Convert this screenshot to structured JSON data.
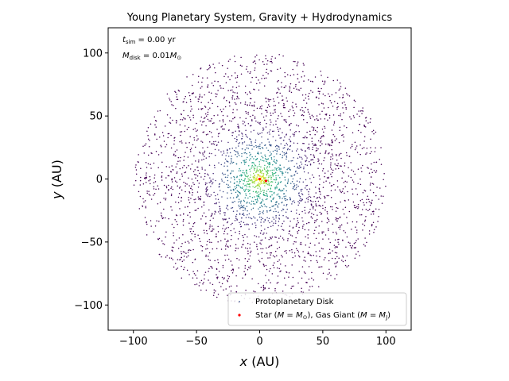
{
  "chart_data": {
    "type": "scatter",
    "title": "Young Planetary System, Gravity + Hydrodynamics",
    "xlabel_var": "x",
    "xlabel_unit": "(AU)",
    "ylabel_var": "y",
    "ylabel_unit": "(AU)",
    "xlim": [
      -120,
      120
    ],
    "ylim": [
      -120,
      120
    ],
    "xticks": [
      -100,
      -50,
      0,
      50,
      100
    ],
    "yticks": [
      -100,
      -50,
      0,
      50,
      100
    ],
    "xtick_labels": [
      "−100",
      "−50",
      "0",
      "50",
      "100"
    ],
    "ytick_labels": [
      "−100",
      "−50",
      "0",
      "50",
      "100"
    ],
    "grid": false,
    "annotations": {
      "time": {
        "var": "t",
        "sub": "sim",
        "rest": " = 0.00 yr"
      },
      "mass": {
        "var": "M",
        "sub": "disk",
        "rest": " = 0.01",
        "var2": "M",
        "sub2": "⊙"
      }
    },
    "disk": {
      "n_particles": 3000,
      "outer_radius": 100,
      "inner_radius": 1,
      "colormap": "viridis",
      "color_encodes": "surface density (high at center)"
    },
    "series": [
      {
        "name": "Protoplanetary Disk",
        "kind": "disk",
        "color": "#3b528b"
      },
      {
        "name": "Star (M = M⊙), Gas Giant (M = MJ)",
        "kind": "bodies",
        "color": "#ff0000",
        "points": [
          {
            "label": "Star",
            "x": 0.0,
            "y": 0.0
          },
          {
            "label": "Gas Giant",
            "x": 5.0,
            "y": -1.5
          }
        ]
      }
    ],
    "legend": {
      "position": "lower right",
      "entries": [
        {
          "text": "Protoplanetary Disk",
          "marker_color": "#3b528b"
        },
        {
          "text_parts": [
            "Star (",
            "M",
            " = ",
            "M",
            "⊙",
            "), Gas Giant (",
            "M",
            " = ",
            "M",
            "J",
            ")"
          ],
          "marker_color": "#ff0000"
        }
      ]
    }
  }
}
